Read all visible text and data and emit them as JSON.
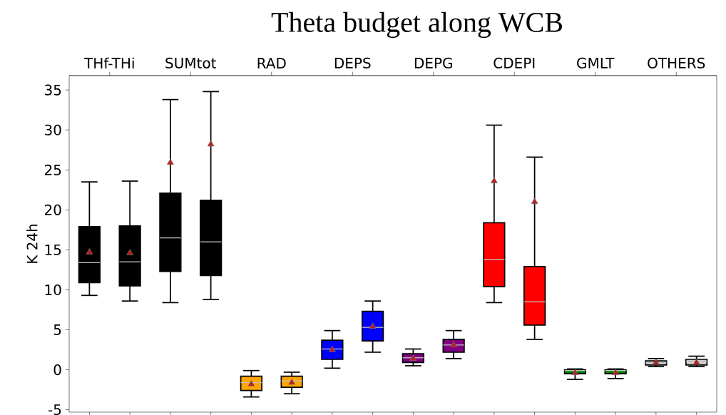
{
  "chart_data": {
    "type": "box",
    "title": "Theta budget along WCB",
    "ylabel": "K 24h",
    "categories": [
      "THf-THi",
      "SUMtot",
      "RAD",
      "DEPS",
      "DEPG",
      "CDEPI",
      "GMLT",
      "OTHERS"
    ],
    "ylim": [
      -5.3,
      36.8
    ],
    "yticks": [
      -5,
      0,
      5,
      10,
      15,
      20,
      25,
      30,
      35
    ],
    "series": [
      {
        "colors": [
          "#000000",
          "#000000",
          "#ffa500",
          "#0000ff",
          "#800080",
          "#ff0000",
          "#008000",
          "#cccccc"
        ],
        "boxes": [
          {
            "low": 9.3,
            "q1": 10.9,
            "median": 13.4,
            "q3": 17.9,
            "high": 23.5,
            "mean": 14.7
          },
          {
            "low": 8.4,
            "q1": 12.3,
            "median": 16.5,
            "q3": 22.1,
            "high": 33.8,
            "mean": 25.9
          },
          {
            "low": -3.4,
            "q1": -2.6,
            "median": -1.6,
            "q3": -0.8,
            "high": -0.1,
            "mean": -1.8
          },
          {
            "low": 0.2,
            "q1": 1.3,
            "median": 2.6,
            "q3": 3.7,
            "high": 4.9,
            "mean": 2.5
          },
          {
            "low": 0.5,
            "q1": 0.9,
            "median": 1.5,
            "q3": 2.0,
            "high": 2.6,
            "mean": 1.4
          },
          {
            "low": 8.4,
            "q1": 10.4,
            "median": 13.8,
            "q3": 18.4,
            "high": 30.6,
            "mean": 23.6
          },
          {
            "low": -1.2,
            "q1": -0.5,
            "median": -0.1,
            "q3": 0.0,
            "high": 0.1,
            "mean": -0.4
          },
          {
            "low": 0.4,
            "q1": 0.6,
            "median": 0.9,
            "q3": 1.1,
            "high": 1.4,
            "mean": 0.9
          }
        ]
      },
      {
        "colors": [
          "#000000",
          "#000000",
          "#ffa500",
          "#0000ff",
          "#800080",
          "#ff0000",
          "#008000",
          "#cccccc"
        ],
        "boxes": [
          {
            "low": 8.6,
            "q1": 10.5,
            "median": 13.5,
            "q3": 18.0,
            "high": 23.6,
            "mean": 14.6
          },
          {
            "low": 8.8,
            "q1": 11.8,
            "median": 16.0,
            "q3": 21.2,
            "high": 34.8,
            "mean": 28.2
          },
          {
            "low": -3.0,
            "q1": -2.2,
            "median": -1.4,
            "q3": -0.8,
            "high": -0.3,
            "mean": -1.6
          },
          {
            "low": 2.2,
            "q1": 3.6,
            "median": 5.3,
            "q3": 7.3,
            "high": 8.6,
            "mean": 5.4
          },
          {
            "low": 1.4,
            "q1": 2.2,
            "median": 3.1,
            "q3": 3.8,
            "high": 4.9,
            "mean": 3.1
          },
          {
            "low": 3.8,
            "q1": 5.6,
            "median": 8.5,
            "q3": 12.9,
            "high": 26.6,
            "mean": 21.0
          },
          {
            "low": -1.1,
            "q1": -0.5,
            "median": -0.1,
            "q3": 0.0,
            "high": 0.1,
            "mean": -0.4
          },
          {
            "low": 0.4,
            "q1": 0.6,
            "median": 1.0,
            "q3": 1.3,
            "high": 1.7,
            "mean": 0.9
          }
        ]
      }
    ]
  }
}
